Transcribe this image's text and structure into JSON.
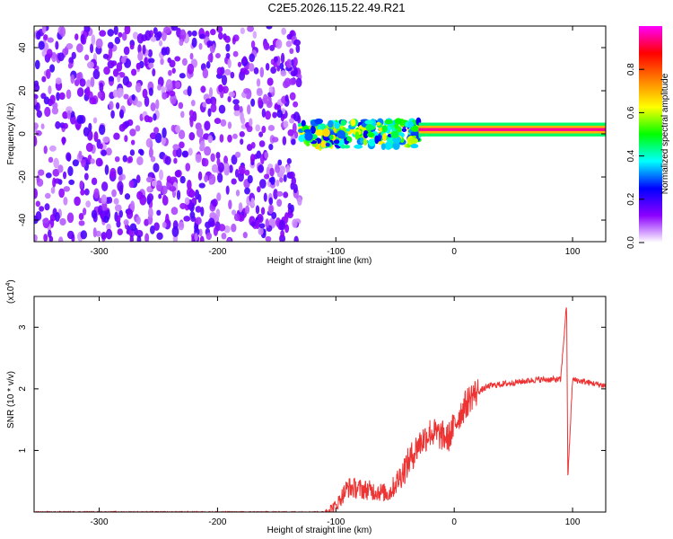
{
  "title": "C2E5.2026.115.22.49.R21",
  "chart_data": [
    {
      "type": "heatmap",
      "xlabel": "Height of straight line (km)",
      "ylabel": "Frequency (Hz)",
      "xlim": [
        -355,
        128
      ],
      "ylim": [
        -50,
        50
      ],
      "xticks": [
        -300,
        -200,
        -100,
        0,
        100
      ],
      "yticks": [
        -40,
        -20,
        0,
        20,
        40
      ],
      "colorbar": {
        "label": "Normalized spectral amplitude",
        "range": [
          0,
          1
        ],
        "ticks": [
          "0.0",
          "0.2",
          "0.4",
          "0.6",
          "0.8"
        ],
        "tick_values": [
          0.0,
          0.2,
          0.4,
          0.6,
          0.8
        ],
        "colors": [
          "#ffffff",
          "#8c00ff",
          "#0000ff",
          "#00ffff",
          "#00ff00",
          "#ffff00",
          "#ff8000",
          "#ff0000",
          "#ff00ff"
        ]
      },
      "features": [
        {
          "region": "noise",
          "x_range": [
            -355,
            -130
          ],
          "freq_range": [
            -50,
            50
          ],
          "amplitude": 0.15
        },
        {
          "region": "transition",
          "x_range": [
            -130,
            -30
          ],
          "center_freq": 0,
          "half_width_hz": 6,
          "amplitude": 0.45
        },
        {
          "region": "signal",
          "x_range": [
            -30,
            128
          ],
          "center_freq": 2,
          "half_width_hz": 2,
          "amplitude": 0.95
        }
      ]
    },
    {
      "type": "line",
      "xlabel": "Height of straight line (km)",
      "ylabel": "SNR (10 * v/v)",
      "scale_label": "(x10",
      "scale_exp": "4",
      "xlim": [
        -355,
        128
      ],
      "ylim": [
        0,
        3.5
      ],
      "xticks": [
        -300,
        -200,
        -100,
        0,
        100
      ],
      "yticks": [
        1,
        2,
        3
      ],
      "color": "#ee3333",
      "keypoints": [
        [
          -355,
          0.0
        ],
        [
          -110,
          0.0
        ],
        [
          -100,
          0.1
        ],
        [
          -90,
          0.4
        ],
        [
          -70,
          0.35
        ],
        [
          -55,
          0.3
        ],
        [
          -45,
          0.6
        ],
        [
          -30,
          1.1
        ],
        [
          -20,
          1.3
        ],
        [
          -5,
          1.2
        ],
        [
          5,
          1.6
        ],
        [
          15,
          1.9
        ],
        [
          30,
          2.05
        ],
        [
          50,
          2.1
        ],
        [
          70,
          2.15
        ],
        [
          90,
          2.15
        ],
        [
          95,
          3.4
        ],
        [
          96,
          0.55
        ],
        [
          100,
          2.15
        ],
        [
          128,
          2.05
        ]
      ]
    }
  ]
}
